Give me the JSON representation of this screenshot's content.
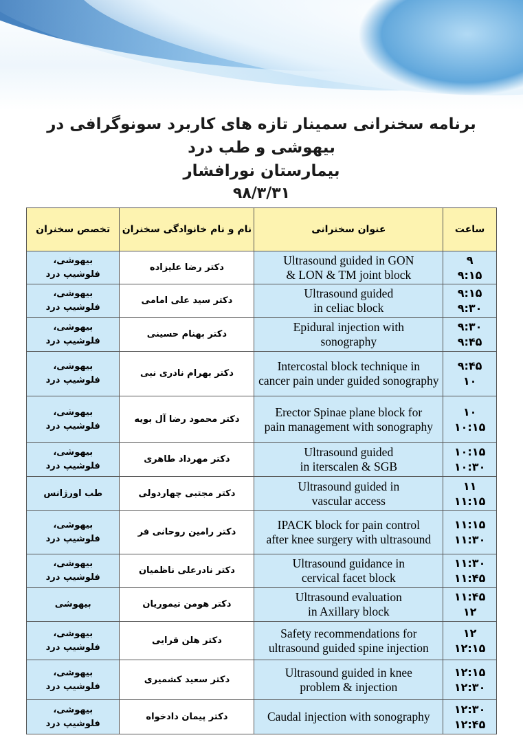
{
  "title": {
    "line1": "برنامه سخنرانی سمینار تازه های کاربرد سونوگرافی در بیهوشی و طب درد",
    "line2": "بیمارستان نورافشار",
    "date": "۹۸/۳/۳۱"
  },
  "table": {
    "headers": {
      "time": "ساعت",
      "topic": "عنوان سخنرانی",
      "speaker": "نام و نام خانوادگی سخنران",
      "specialty": "تخصص سخنران"
    },
    "rows": [
      {
        "start": "۹",
        "end": "۹:۱۵",
        "topic": [
          "Ultrasound guided in GON",
          "& LON & TM joint block"
        ],
        "speaker": "دکتر رضا علیزاده",
        "specialty": [
          "بیهوشی،",
          "فلوشیپ درد"
        ]
      },
      {
        "start": "۹:۱۵",
        "end": "۹:۳۰",
        "topic": [
          "Ultrasound guided",
          "in celiac block"
        ],
        "speaker": "دکتر سید علی امامی",
        "specialty": [
          "بیهوشی،",
          "فلوشیپ درد"
        ]
      },
      {
        "start": "۹:۳۰",
        "end": "۹:۴۵",
        "topic": [
          "Epidural injection with",
          "sonography"
        ],
        "speaker": "دکتر بهنام حسینی",
        "specialty": [
          "بیهوشی،",
          "فلوشیپ درد"
        ]
      },
      {
        "start": "۹:۴۵",
        "end": "۱۰",
        "topic": [
          "Intercostal block technique in",
          "cancer pain under guided sonography"
        ],
        "speaker": "دکتر بهرام نادری نبی",
        "specialty": [
          "بیهوشی،",
          "فلوشیپ درد"
        ]
      },
      {
        "start": "۱۰",
        "end": "۱۰:۱۵",
        "topic": [
          "Erector Spinae plane block for",
          "pain management with sonography"
        ],
        "speaker": "دکتر محمود رضا آل بویه",
        "specialty": [
          "بیهوشی،",
          "فلوشیپ درد"
        ]
      },
      {
        "start": "۱۰:۱۵",
        "end": "۱۰:۳۰",
        "topic": [
          "Ultrasound guided",
          "in iterscalen & SGB"
        ],
        "speaker": "دکتر مهرداد طاهری",
        "specialty": [
          "بیهوشی،",
          "فلوشیپ درد"
        ]
      },
      {
        "start": "۱۱",
        "end": "۱۱:۱۵",
        "topic": [
          "Ultrasound guided in",
          "vascular access"
        ],
        "speaker": "دکتر مجتبی چهاردولی",
        "specialty": [
          "طب اورژانس",
          ""
        ]
      },
      {
        "start": "۱۱:۱۵",
        "end": "۱۱:۳۰",
        "topic": [
          "IPACK block for pain control",
          "after knee surgery with ultrasound"
        ],
        "speaker": "دکتر رامین روحانی فر",
        "specialty": [
          "بیهوشی،",
          "فلوشیپ درد"
        ]
      },
      {
        "start": "۱۱:۳۰",
        "end": "۱۱:۴۵",
        "topic": [
          "Ultrasound guidance in",
          "cervical facet block"
        ],
        "speaker": "دکتر نادرعلی ناظمیان",
        "specialty": [
          "بیهوشی،",
          "فلوشیپ درد"
        ]
      },
      {
        "start": "۱۱:۴۵",
        "end": "۱۲",
        "topic": [
          "Ultrasound evaluation",
          "in Axillary block"
        ],
        "speaker": "دکتر هومن تیموریان",
        "specialty": [
          "بیهوشی",
          ""
        ]
      },
      {
        "start": "۱۲",
        "end": "۱۲:۱۵",
        "topic": [
          "Safety recommendations for",
          "ultrasound guided spine injection"
        ],
        "speaker": "دکتر هلن قرایی",
        "specialty": [
          "بیهوشی،",
          "فلوشیپ درد"
        ]
      },
      {
        "start": "۱۲:۱۵",
        "end": "۱۲:۳۰",
        "topic": [
          "Ultrasound guided in knee",
          "problem & injection"
        ],
        "speaker": "دکتر سعید کشمیری",
        "specialty": [
          "بیهوشی،",
          "فلوشیپ درد"
        ]
      },
      {
        "start": "۱۲:۳۰",
        "end": "۱۲:۴۵",
        "topic": [
          "Caudal injection with sonography",
          ""
        ],
        "speaker": "دکتر پیمان دادخواه",
        "specialty": [
          "بیهوشی،",
          "فلوشیپ درد"
        ]
      }
    ]
  }
}
